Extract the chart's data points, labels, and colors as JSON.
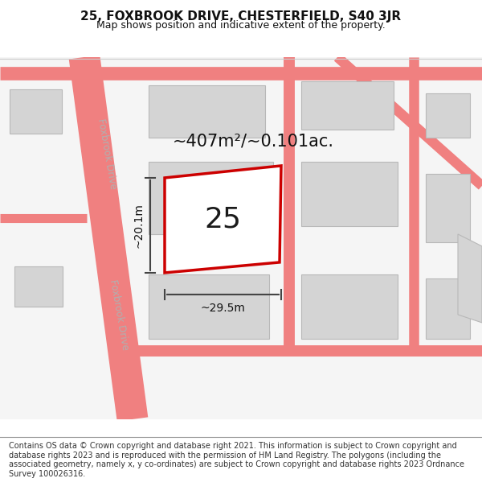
{
  "title": "25, FOXBROOK DRIVE, CHESTERFIELD, S40 3JR",
  "subtitle": "Map shows position and indicative extent of the property.",
  "footer": "Contains OS data © Crown copyright and database right 2021. This information is subject to Crown copyright and database rights 2023 and is reproduced with the permission of HM Land Registry. The polygons (including the associated geometry, namely x, y co-ordinates) are subject to Crown copyright and database rights 2023 Ordnance Survey 100026316.",
  "background_color": "#ffffff",
  "road_color": "#f08080",
  "road_color2": "#e87070",
  "building_color": "#d4d4d4",
  "building_edge": "#b8b8b8",
  "plot_color": "#ffffff",
  "plot_edge": "#cc0000",
  "plot_label": "25",
  "area_text": "~407m²/~0.101ac.",
  "dim_width": "~29.5m",
  "dim_height": "~20.1m",
  "road_label": "Foxbrook Drive",
  "title_fontsize": 11,
  "subtitle_fontsize": 9,
  "footer_fontsize": 7,
  "map_bg": "#f5f5f5"
}
